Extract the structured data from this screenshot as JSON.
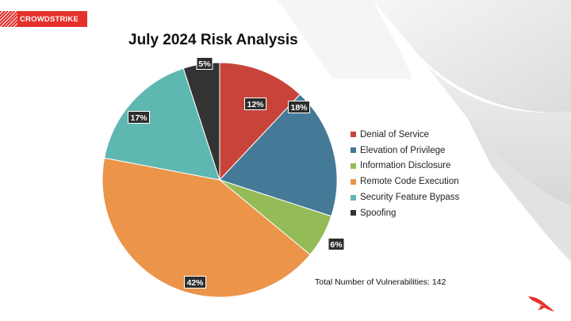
{
  "brand": {
    "name": "CROWDSTRIKE",
    "color": "#e4312b"
  },
  "chart_data": {
    "type": "pie",
    "title": "July 2024 Risk Analysis",
    "categories": [
      "Denial of Service",
      "Elevation of Privilege",
      "Information Disclosure",
      "Remote Code Execution",
      "Security Feature Bypass",
      "Spoofing"
    ],
    "values": [
      12,
      18,
      6,
      42,
      17,
      5
    ],
    "data_labels": [
      "12%",
      "18%",
      "6%",
      "42%",
      "17%",
      "5%"
    ],
    "colors": [
      "#c8443b",
      "#447a97",
      "#95bb58",
      "#eb944a",
      "#5fb7b1",
      "#333333"
    ],
    "legend_position": "right",
    "annotation": "Total Number of Vulnerabilities: 142"
  }
}
